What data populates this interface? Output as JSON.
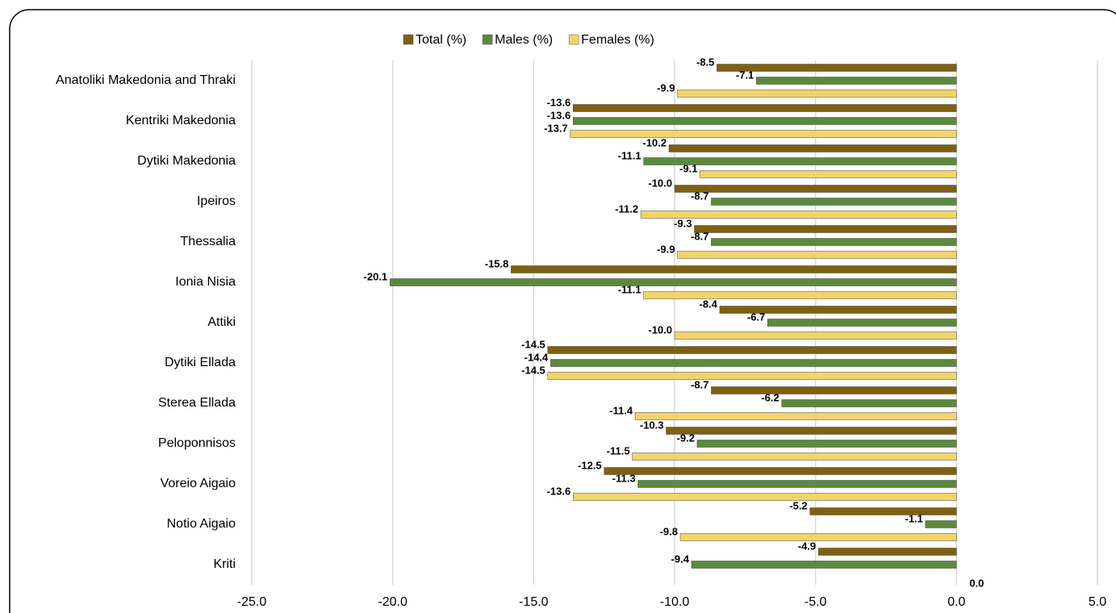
{
  "chart_data": {
    "type": "hbar",
    "categories": [
      "Anatoliki Makedonia and Thraki",
      "Kentriki Makedonia",
      "Dytiki Makedonia",
      "Ipeiros",
      "Thessalia",
      "Ionia Nisia",
      "Attiki",
      "Dytiki Ellada",
      "Sterea Ellada",
      "Peloponnisos",
      "Voreio Aigaio",
      "Notio Aigaio",
      "Kriti"
    ],
    "series": [
      {
        "name": "Total (%)",
        "color": "#7f6010",
        "values": [
          -8.5,
          -13.6,
          -10.2,
          -10.0,
          -9.3,
          -15.8,
          -8.4,
          -14.5,
          -8.7,
          -10.3,
          -12.5,
          -5.2,
          -4.9
        ],
        "value_labels": [
          "-8.5",
          "-13.6",
          "-10.2",
          "-10.0",
          "-9.3",
          "-15.8",
          "-8.4",
          "-14.5",
          "-8.7",
          "-10.3",
          "-12.5",
          "-5.2",
          "-4.9"
        ]
      },
      {
        "name": "Males (%)",
        "color": "#5b8a3c",
        "values": [
          -7.1,
          -13.6,
          -11.1,
          -8.7,
          -8.7,
          -20.1,
          -6.7,
          -14.4,
          -6.2,
          -9.2,
          -11.3,
          -1.1,
          -9.4
        ],
        "value_labels": [
          "-7.1",
          "-13.6",
          "-11.1",
          "-8.7",
          "-8.7",
          "-20.1",
          "-6.7",
          "-14.4",
          "-6.2",
          "-9.2",
          "-11.3",
          "-1.1",
          "-9.4"
        ]
      },
      {
        "name": "Females (%)",
        "color": "#f2d46a",
        "values": [
          -9.9,
          -13.7,
          -9.1,
          -11.2,
          -9.9,
          -11.1,
          -10.0,
          -14.5,
          -11.4,
          -11.5,
          -13.6,
          -9.8,
          0.0
        ],
        "value_labels": [
          "-9.9",
          "-13.7",
          "-9.1",
          "-11.2",
          "-9.9",
          "-11.1",
          "-10.0",
          "-14.5",
          "-11.4",
          "-11.5",
          "-13.6",
          "-9.8",
          "0.0"
        ]
      }
    ],
    "xlim": [
      -25,
      5
    ],
    "xticks": [
      {
        "value": -25,
        "label": "-25.0"
      },
      {
        "value": -20,
        "label": "-20.0"
      },
      {
        "value": -15,
        "label": "-15.0"
      },
      {
        "value": -10,
        "label": "-10.0"
      },
      {
        "value": -5,
        "label": "-5.0"
      },
      {
        "value": 0,
        "label": "0.0"
      },
      {
        "value": 5,
        "label": "5.0"
      }
    ],
    "grid": true,
    "legend": "top"
  }
}
